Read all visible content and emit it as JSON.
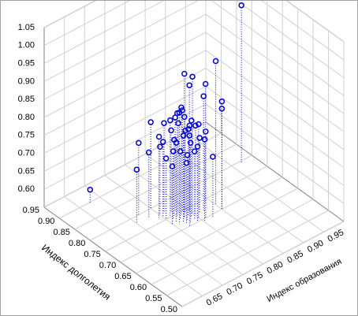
{
  "chart_data": {
    "type": "scatter3d",
    "x_label": "Индекс долголетия",
    "y_label": "Индекс образования",
    "xlim": [
      0.5,
      0.95
    ],
    "xticks": [
      {
        "value": 0.5,
        "label": "0.50"
      },
      0.55,
      {
        "value": 0.6,
        "label": "0.60"
      },
      0.65,
      {
        "value": 0.7,
        "label": "0.70"
      },
      0.75,
      {
        "value": 0.8,
        "label": "0.80"
      },
      0.85,
      {
        "value": 0.9,
        "label": "0.90"
      },
      0.95
    ],
    "ylim": [
      0.6,
      1.0
    ],
    "yticks": [
      0.65,
      {
        "value": 0.7,
        "label": "0.70"
      },
      0.75,
      {
        "value": 0.8,
        "label": "0.80"
      },
      0.85,
      {
        "value": 0.9,
        "label": "0.90"
      },
      0.95
    ],
    "zlim": [
      0.55,
      1.05
    ],
    "zticks": [
      {
        "value": 0.6,
        "label": "0.60"
      },
      0.65,
      {
        "value": 0.7,
        "label": "0.70"
      },
      0.75,
      {
        "value": 0.8,
        "label": "0.80"
      },
      0.85,
      {
        "value": 0.9,
        "label": "0.90"
      },
      0.95,
      {
        "value": 1.0,
        "label": "1.00"
      },
      1.05
    ],
    "grid": true,
    "color": "#0000d0",
    "x": [
      0.895,
      0.793,
      0.78,
      0.8,
      0.72,
      0.74,
      0.73,
      0.73,
      0.74,
      0.72,
      0.7,
      0.7,
      0.8,
      0.78,
      0.76,
      0.75,
      0.74,
      0.74,
      0.73,
      0.75,
      0.72,
      0.73,
      0.74,
      0.72,
      0.71,
      0.73,
      0.75,
      0.76,
      0.72,
      0.71,
      0.7,
      0.74,
      0.73,
      0.72,
      0.71,
      0.75,
      0.76,
      0.77,
      0.69,
      0.74,
      0.72,
      0.7,
      0.75,
      0.73,
      0.71,
      0.76,
      0.69,
      0.72,
      0.77,
      0.7
    ],
    "y": [
      0.672,
      0.969,
      0.7,
      0.75,
      0.85,
      0.84,
      0.78,
      0.8,
      0.8,
      0.82,
      0.85,
      0.85,
      0.72,
      0.73,
      0.75,
      0.76,
      0.77,
      0.78,
      0.78,
      0.78,
      0.79,
      0.79,
      0.79,
      0.8,
      0.8,
      0.76,
      0.77,
      0.77,
      0.77,
      0.78,
      0.79,
      0.76,
      0.77,
      0.78,
      0.79,
      0.79,
      0.78,
      0.76,
      0.82,
      0.8,
      0.76,
      0.81,
      0.75,
      0.75,
      0.77,
      0.74,
      0.8,
      0.81,
      0.75,
      0.77
    ],
    "z": [
      0.59,
      0.99,
      0.7,
      0.79,
      0.95,
      0.88,
      0.95,
      0.93,
      0.9,
      0.87,
      0.85,
      0.83,
      0.75,
      0.73,
      0.76,
      0.82,
      0.84,
      0.85,
      0.83,
      0.8,
      0.82,
      0.79,
      0.78,
      0.8,
      0.81,
      0.77,
      0.76,
      0.78,
      0.79,
      0.77,
      0.76,
      0.74,
      0.74,
      0.73,
      0.74,
      0.83,
      0.81,
      0.8,
      0.72,
      0.76,
      0.86,
      0.79,
      0.72,
      0.71,
      0.72,
      0.78,
      0.78,
      0.76,
      0.74,
      0.83
    ]
  }
}
